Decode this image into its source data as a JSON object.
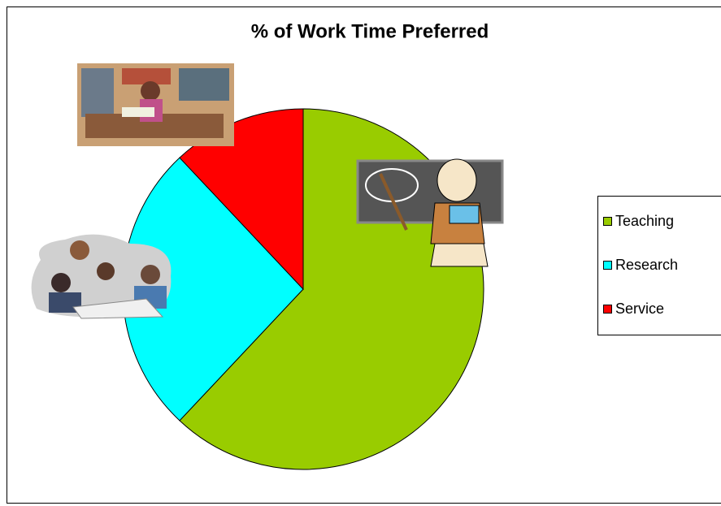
{
  "chart_data": {
    "type": "pie",
    "title": "% of Work Time Preferred",
    "categories": [
      "Teaching",
      "Research",
      "Service"
    ],
    "values": [
      62,
      26,
      12
    ],
    "colors": [
      "#99cc00",
      "#00ffff",
      "#ff0000"
    ],
    "legend": "right"
  }
}
